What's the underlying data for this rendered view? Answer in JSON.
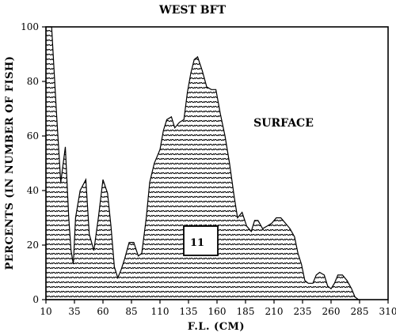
{
  "chart_data": {
    "type": "area",
    "title": "WEST BFT",
    "xlabel": "F.L. (CM)",
    "ylabel": "PERCENTS (IN NUMBER OF FISH)",
    "annotation": "SURFACE",
    "box_label": "11",
    "xlim": [
      10,
      310
    ],
    "ylim": [
      0,
      100
    ],
    "x_ticks": [
      10,
      35,
      60,
      85,
      110,
      135,
      160,
      185,
      210,
      235,
      260,
      285,
      310
    ],
    "y_ticks": [
      0,
      20,
      40,
      60,
      80,
      100
    ],
    "grid": false,
    "legend": "none",
    "series": [
      {
        "fill": "hatched",
        "points": [
          [
            10,
            0
          ],
          [
            10,
            100
          ],
          [
            15,
            100
          ],
          [
            19,
            70
          ],
          [
            23,
            43
          ],
          [
            27,
            56
          ],
          [
            30,
            30
          ],
          [
            32,
            18
          ],
          [
            34,
            13
          ],
          [
            36,
            30
          ],
          [
            40,
            40
          ],
          [
            45,
            44
          ],
          [
            48,
            24
          ],
          [
            52,
            18
          ],
          [
            56,
            30
          ],
          [
            60,
            44
          ],
          [
            64,
            39
          ],
          [
            67,
            27
          ],
          [
            70,
            12
          ],
          [
            73,
            8
          ],
          [
            76,
            11
          ],
          [
            79,
            15
          ],
          [
            83,
            21
          ],
          [
            87,
            21
          ],
          [
            91,
            16
          ],
          [
            94,
            17
          ],
          [
            98,
            30
          ],
          [
            101,
            43
          ],
          [
            105,
            50
          ],
          [
            110,
            55
          ],
          [
            113,
            62
          ],
          [
            116,
            66
          ],
          [
            120,
            67
          ],
          [
            123,
            63
          ],
          [
            127,
            65
          ],
          [
            131,
            66
          ],
          [
            134,
            76
          ],
          [
            137,
            83
          ],
          [
            140,
            88
          ],
          [
            143,
            89
          ],
          [
            147,
            84
          ],
          [
            151,
            78
          ],
          [
            155,
            77
          ],
          [
            159,
            77
          ],
          [
            163,
            68
          ],
          [
            167,
            60
          ],
          [
            171,
            50
          ],
          [
            175,
            38
          ],
          [
            178,
            30
          ],
          [
            182,
            32
          ],
          [
            186,
            27
          ],
          [
            190,
            25
          ],
          [
            193,
            29
          ],
          [
            196,
            29
          ],
          [
            200,
            26
          ],
          [
            204,
            27
          ],
          [
            208,
            28
          ],
          [
            212,
            30
          ],
          [
            216,
            30
          ],
          [
            220,
            28
          ],
          [
            224,
            26
          ],
          [
            228,
            23
          ],
          [
            231,
            17
          ],
          [
            234,
            13
          ],
          [
            237,
            7
          ],
          [
            240,
            6
          ],
          [
            244,
            6
          ],
          [
            247,
            9
          ],
          [
            250,
            10
          ],
          [
            254,
            9
          ],
          [
            257,
            5
          ],
          [
            260,
            4
          ],
          [
            263,
            6
          ],
          [
            266,
            9
          ],
          [
            270,
            9
          ],
          [
            274,
            7
          ],
          [
            278,
            4
          ],
          [
            281,
            1
          ],
          [
            284,
            0
          ]
        ]
      }
    ]
  }
}
